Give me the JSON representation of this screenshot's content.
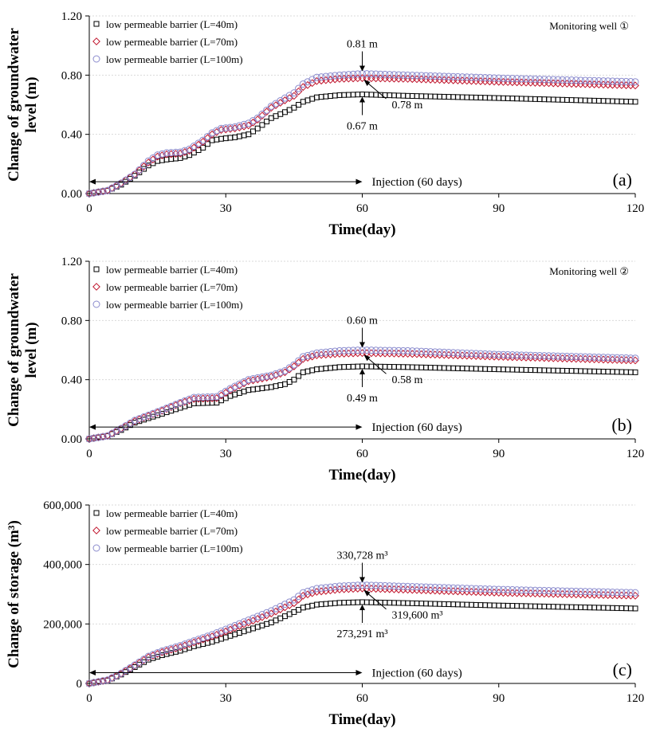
{
  "colors": {
    "L40": "#000000",
    "L70": "#c0142c",
    "L100": "#8a8acd",
    "grid": "#d9d9d9"
  },
  "chart_data": [
    {
      "type": "scatter",
      "panel_label": "(a)",
      "well_label": "Monitoring well ①",
      "xlabel": "Time(day)",
      "ylabel_line1": "Change of groundwater",
      "ylabel_line2": "level (m)",
      "xlim": [
        0,
        120
      ],
      "ylim": [
        0,
        1.2
      ],
      "x_ticks": [
        0,
        30,
        60,
        90,
        120
      ],
      "x_tick_labels": [
        "0",
        "30",
        "60",
        "90",
        "120"
      ],
      "y_ticks": [
        0,
        0.4,
        0.8,
        1.2
      ],
      "y_tick_labels": [
        "0.00",
        "0.40",
        "0.80",
        "1.20"
      ],
      "legend": [
        "low permeable barrier (L=40m)",
        "low permeable barrier (L=70m)",
        "low permeable barrier (L=100m)"
      ],
      "injection_label": "Injection (60 days)",
      "injection_range": [
        0,
        60
      ],
      "injection_y": 0.08,
      "annotations": [
        {
          "text": "0.81 m",
          "kind": "top",
          "x": 60,
          "y": 0.81
        },
        {
          "text": "0.78 m",
          "kind": "mid",
          "x": 60,
          "y": 0.78
        },
        {
          "text": "0.67 m",
          "kind": "bottom",
          "x": 60,
          "y": 0.67
        }
      ],
      "series": [
        {
          "name": "low permeable barrier (L=40m)",
          "marker": "square",
          "colorKey": "L40",
          "points": [
            [
              0,
              0
            ],
            [
              4,
              0.02
            ],
            [
              7,
              0.06
            ],
            [
              10,
              0.12
            ],
            [
              13,
              0.19
            ],
            [
              15,
              0.22
            ],
            [
              17,
              0.23
            ],
            [
              20,
              0.24
            ],
            [
              22,
              0.26
            ],
            [
              25,
              0.31
            ],
            [
              27,
              0.36
            ],
            [
              29,
              0.37
            ],
            [
              32,
              0.38
            ],
            [
              35,
              0.4
            ],
            [
              37,
              0.44
            ],
            [
              40,
              0.51
            ],
            [
              43,
              0.55
            ],
            [
              45,
              0.58
            ],
            [
              47,
              0.62
            ],
            [
              50,
              0.65
            ],
            [
              55,
              0.665
            ],
            [
              60,
              0.67
            ],
            [
              70,
              0.66
            ],
            [
              90,
              0.645
            ],
            [
              120,
              0.62
            ]
          ]
        },
        {
          "name": "low permeable barrier (L=70m)",
          "marker": "diamond",
          "colorKey": "L70",
          "points": [
            [
              0,
              0
            ],
            [
              4,
              0.02
            ],
            [
              7,
              0.07
            ],
            [
              10,
              0.13
            ],
            [
              13,
              0.21
            ],
            [
              15,
              0.25
            ],
            [
              17,
              0.265
            ],
            [
              20,
              0.27
            ],
            [
              22,
              0.29
            ],
            [
              25,
              0.35
            ],
            [
              27,
              0.4
            ],
            [
              29,
              0.43
            ],
            [
              32,
              0.44
            ],
            [
              35,
              0.46
            ],
            [
              37,
              0.5
            ],
            [
              40,
              0.58
            ],
            [
              43,
              0.63
            ],
            [
              45,
              0.66
            ],
            [
              47,
              0.72
            ],
            [
              50,
              0.76
            ],
            [
              55,
              0.775
            ],
            [
              60,
              0.78
            ],
            [
              70,
              0.775
            ],
            [
              90,
              0.755
            ],
            [
              120,
              0.73
            ]
          ]
        },
        {
          "name": "low permeable barrier (L=100m)",
          "marker": "circle",
          "colorKey": "L100",
          "points": [
            [
              0,
              0
            ],
            [
              4,
              0.02
            ],
            [
              7,
              0.07
            ],
            [
              10,
              0.13
            ],
            [
              13,
              0.22
            ],
            [
              15,
              0.26
            ],
            [
              17,
              0.275
            ],
            [
              20,
              0.28
            ],
            [
              22,
              0.3
            ],
            [
              25,
              0.36
            ],
            [
              27,
              0.41
            ],
            [
              29,
              0.44
            ],
            [
              32,
              0.45
            ],
            [
              35,
              0.475
            ],
            [
              37,
              0.51
            ],
            [
              40,
              0.59
            ],
            [
              43,
              0.645
            ],
            [
              45,
              0.68
            ],
            [
              47,
              0.74
            ],
            [
              50,
              0.785
            ],
            [
              55,
              0.8
            ],
            [
              60,
              0.81
            ],
            [
              70,
              0.8
            ],
            [
              90,
              0.78
            ],
            [
              120,
              0.755
            ]
          ]
        }
      ]
    },
    {
      "type": "scatter",
      "panel_label": "(b)",
      "well_label": "Monitoring well ②",
      "xlabel": "Time(day)",
      "ylabel_line1": "Change of groundwater",
      "ylabel_line2": "level (m)",
      "xlim": [
        0,
        120
      ],
      "ylim": [
        0,
        1.2
      ],
      "x_ticks": [
        0,
        30,
        60,
        90,
        120
      ],
      "x_tick_labels": [
        "0",
        "30",
        "60",
        "90",
        "120"
      ],
      "y_ticks": [
        0,
        0.4,
        0.8,
        1.2
      ],
      "y_tick_labels": [
        "0.00",
        "0.40",
        "0.80",
        "1.20"
      ],
      "legend": [
        "low permeable barrier (L=40m)",
        "low permeable barrier (L=70m)",
        "low permeable barrier (L=100m)"
      ],
      "injection_label": "Injection (60 days)",
      "injection_range": [
        0,
        60
      ],
      "injection_y": 0.08,
      "annotations": [
        {
          "text": "0.60 m",
          "kind": "top",
          "x": 60,
          "y": 0.6
        },
        {
          "text": "0.58 m",
          "kind": "mid",
          "x": 60,
          "y": 0.58
        },
        {
          "text": "0.49 m",
          "kind": "bottom",
          "x": 60,
          "y": 0.49
        }
      ],
      "series": [
        {
          "name": "low permeable barrier (L=40m)",
          "marker": "square",
          "colorKey": "L40",
          "points": [
            [
              0,
              0
            ],
            [
              4,
              0.02
            ],
            [
              7,
              0.06
            ],
            [
              10,
              0.11
            ],
            [
              13,
              0.14
            ],
            [
              16,
              0.17
            ],
            [
              20,
              0.21
            ],
            [
              23,
              0.24
            ],
            [
              28,
              0.245
            ],
            [
              31,
              0.29
            ],
            [
              35,
              0.33
            ],
            [
              40,
              0.35
            ],
            [
              43,
              0.37
            ],
            [
              45,
              0.4
            ],
            [
              47,
              0.45
            ],
            [
              50,
              0.47
            ],
            [
              55,
              0.485
            ],
            [
              60,
              0.49
            ],
            [
              70,
              0.485
            ],
            [
              90,
              0.47
            ],
            [
              120,
              0.45
            ]
          ]
        },
        {
          "name": "low permeable barrier (L=70m)",
          "marker": "diamond",
          "colorKey": "L70",
          "points": [
            [
              0,
              0
            ],
            [
              4,
              0.02
            ],
            [
              7,
              0.07
            ],
            [
              10,
              0.12
            ],
            [
              13,
              0.155
            ],
            [
              16,
              0.19
            ],
            [
              20,
              0.24
            ],
            [
              23,
              0.27
            ],
            [
              28,
              0.275
            ],
            [
              31,
              0.33
            ],
            [
              35,
              0.39
            ],
            [
              40,
              0.42
            ],
            [
              43,
              0.45
            ],
            [
              45,
              0.49
            ],
            [
              47,
              0.54
            ],
            [
              50,
              0.565
            ],
            [
              55,
              0.575
            ],
            [
              60,
              0.58
            ],
            [
              70,
              0.575
            ],
            [
              90,
              0.555
            ],
            [
              120,
              0.53
            ]
          ]
        },
        {
          "name": "low permeable barrier (L=100m)",
          "marker": "circle",
          "colorKey": "L100",
          "points": [
            [
              0,
              0
            ],
            [
              4,
              0.02
            ],
            [
              7,
              0.07
            ],
            [
              10,
              0.125
            ],
            [
              13,
              0.16
            ],
            [
              16,
              0.195
            ],
            [
              20,
              0.245
            ],
            [
              23,
              0.28
            ],
            [
              28,
              0.285
            ],
            [
              31,
              0.34
            ],
            [
              35,
              0.4
            ],
            [
              40,
              0.43
            ],
            [
              43,
              0.46
            ],
            [
              45,
              0.5
            ],
            [
              47,
              0.555
            ],
            [
              50,
              0.58
            ],
            [
              55,
              0.595
            ],
            [
              60,
              0.6
            ],
            [
              70,
              0.595
            ],
            [
              90,
              0.57
            ],
            [
              120,
              0.545
            ]
          ]
        }
      ]
    },
    {
      "type": "scatter",
      "panel_label": "(c)",
      "well_label": "",
      "xlabel": "Time(day)",
      "ylabel_line1": "Change of  storage (m³)",
      "ylabel_line2": "",
      "xlim": [
        0,
        120
      ],
      "ylim": [
        0,
        600000
      ],
      "x_ticks": [
        0,
        30,
        60,
        90,
        120
      ],
      "x_tick_labels": [
        "0",
        "30",
        "60",
        "90",
        "120"
      ],
      "y_ticks": [
        0,
        200000,
        400000,
        600000
      ],
      "y_tick_labels": [
        "0",
        "200,000",
        "400,000",
        "600,000"
      ],
      "legend": [
        "low permeable barrier (L=40m)",
        "low permeable barrier (L=70m)",
        "low permeable barrier (L=100m)"
      ],
      "injection_label": "Injection (60 days)",
      "injection_range": [
        0,
        60
      ],
      "injection_y": 36000,
      "annotations": [
        {
          "text": "330,728 m³",
          "kind": "top",
          "x": 60,
          "y": 330728
        },
        {
          "text": "319,600 m³",
          "kind": "mid",
          "x": 60,
          "y": 319600
        },
        {
          "text": "273,291 m³",
          "kind": "bottom",
          "x": 60,
          "y": 273291
        }
      ],
      "series": [
        {
          "name": "low permeable barrier (L=40m)",
          "marker": "square",
          "colorKey": "L40",
          "points": [
            [
              0,
              0
            ],
            [
              4,
              10000
            ],
            [
              7,
              30000
            ],
            [
              10,
              55000
            ],
            [
              13,
              80000
            ],
            [
              16,
              95000
            ],
            [
              20,
              110000
            ],
            [
              23,
              125000
            ],
            [
              27,
              140000
            ],
            [
              30,
              155000
            ],
            [
              35,
              180000
            ],
            [
              40,
              205000
            ],
            [
              45,
              240000
            ],
            [
              47,
              255000
            ],
            [
              50,
              265000
            ],
            [
              55,
              271000
            ],
            [
              60,
              273291
            ],
            [
              70,
              270000
            ],
            [
              90,
              262000
            ],
            [
              120,
              252000
            ]
          ]
        },
        {
          "name": "low permeable barrier (L=70m)",
          "marker": "diamond",
          "colorKey": "L70",
          "points": [
            [
              0,
              0
            ],
            [
              4,
              11000
            ],
            [
              7,
              33000
            ],
            [
              10,
              60000
            ],
            [
              13,
              88000
            ],
            [
              16,
              105000
            ],
            [
              20,
              122000
            ],
            [
              23,
              138000
            ],
            [
              27,
              158000
            ],
            [
              30,
              175000
            ],
            [
              35,
              205000
            ],
            [
              40,
              235000
            ],
            [
              45,
              270000
            ],
            [
              47,
              295000
            ],
            [
              50,
              308000
            ],
            [
              55,
              316000
            ],
            [
              60,
              319600
            ],
            [
              70,
              315000
            ],
            [
              90,
              305000
            ],
            [
              120,
              295000
            ]
          ]
        },
        {
          "name": "low permeable barrier (L=100m)",
          "marker": "circle",
          "colorKey": "L100",
          "points": [
            [
              0,
              0
            ],
            [
              4,
              11500
            ],
            [
              7,
              34000
            ],
            [
              10,
              62000
            ],
            [
              13,
              91000
            ],
            [
              16,
              109000
            ],
            [
              20,
              127000
            ],
            [
              23,
              143000
            ],
            [
              27,
              164000
            ],
            [
              30,
              182000
            ],
            [
              35,
              213000
            ],
            [
              40,
              244000
            ],
            [
              45,
              281000
            ],
            [
              47,
              305000
            ],
            [
              50,
              319000
            ],
            [
              55,
              327000
            ],
            [
              60,
              330728
            ],
            [
              70,
              326000
            ],
            [
              90,
              316000
            ],
            [
              120,
              305000
            ]
          ]
        }
      ]
    }
  ]
}
